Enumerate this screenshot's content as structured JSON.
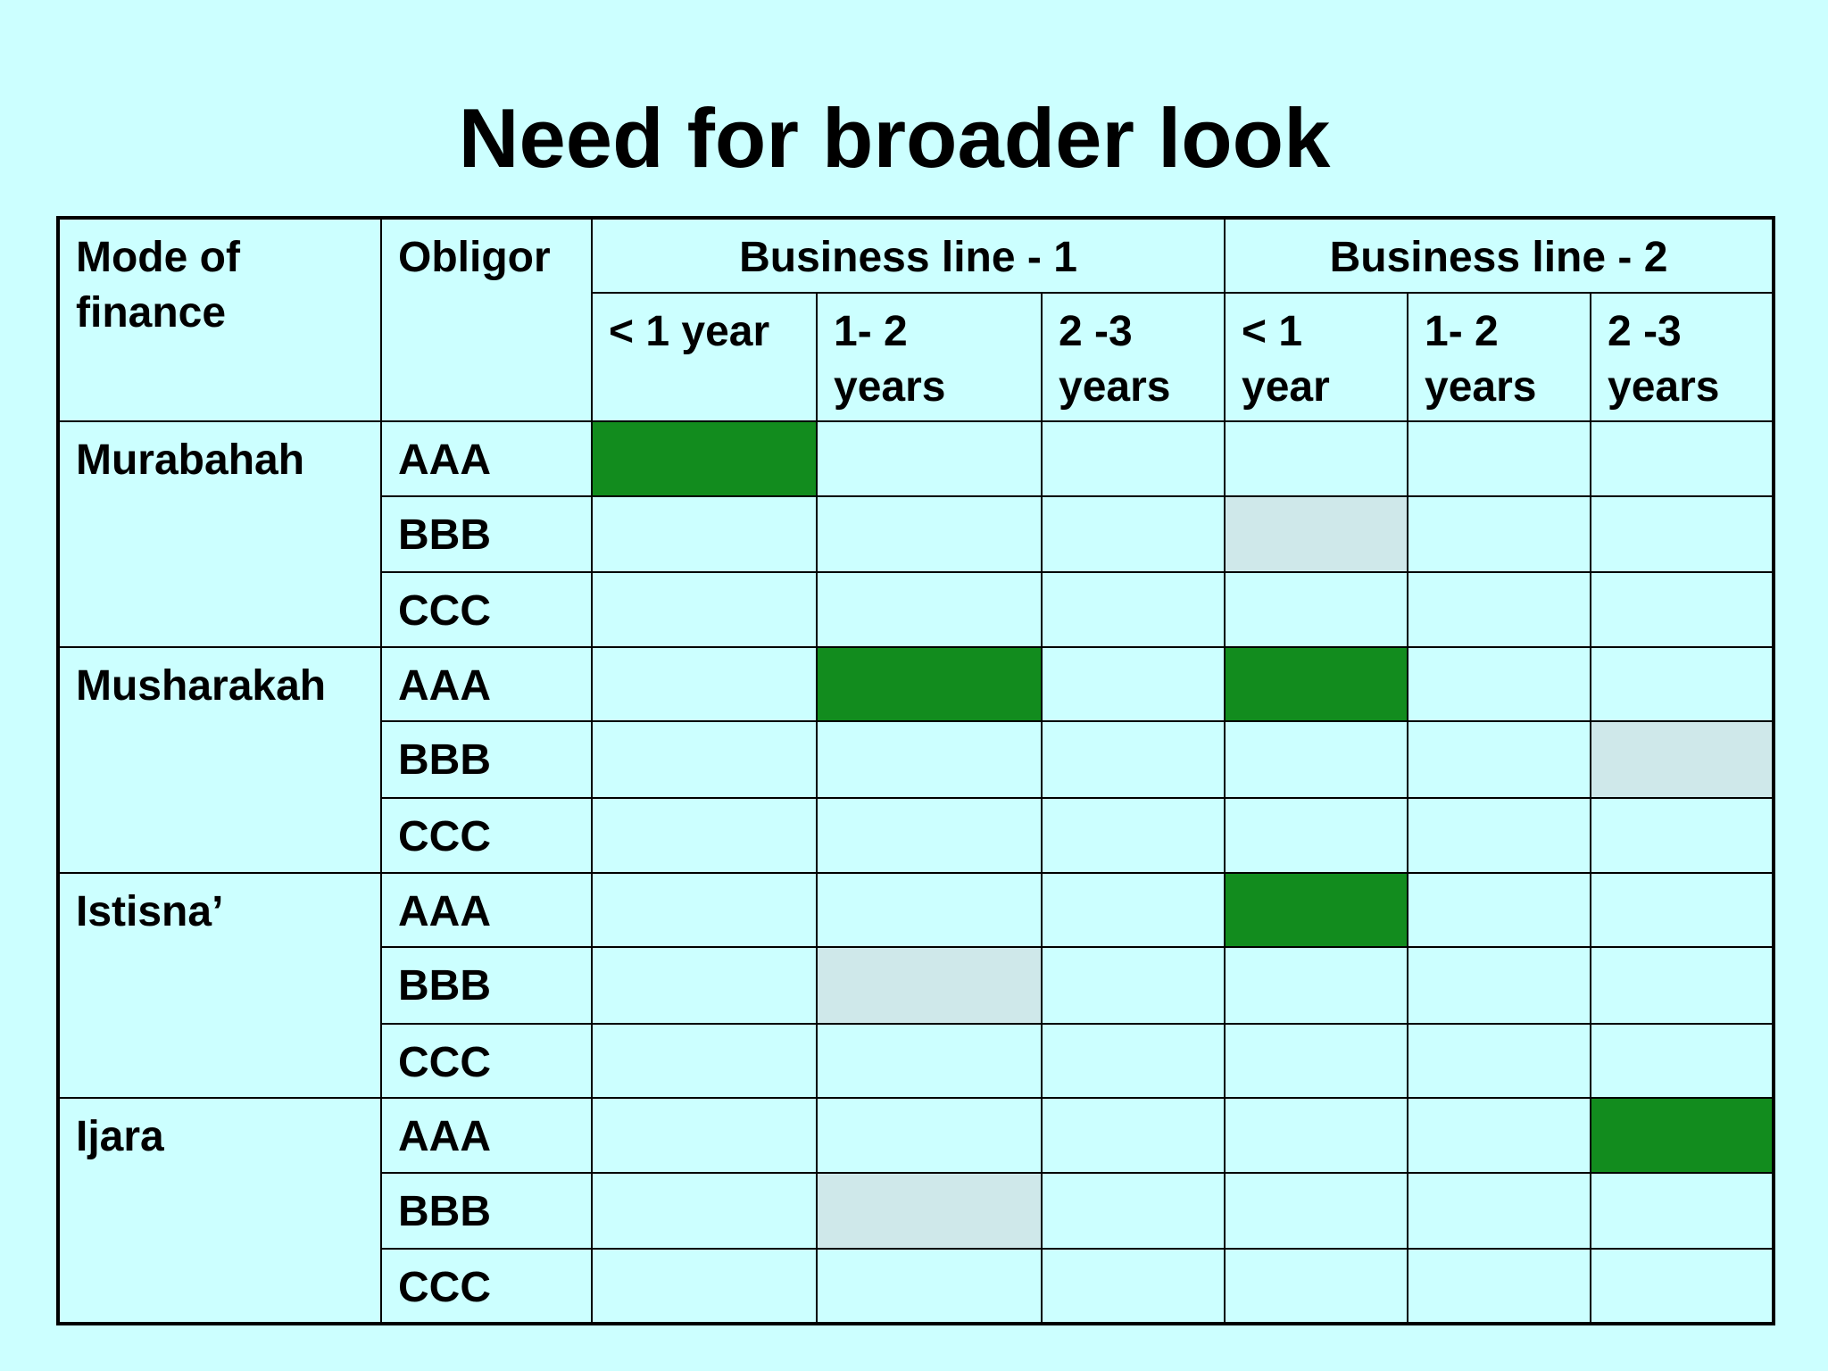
{
  "title": "Need for broader look",
  "header": {
    "mode": "Mode of finance",
    "obligor": "Obligor",
    "groups": [
      "Business line - 1",
      "Business line - 2"
    ],
    "periods": [
      "< 1 year",
      "1- 2 years",
      "2 -3 years",
      "< 1 year",
      "1- 2 years",
      "2 -3 years"
    ]
  },
  "modes": [
    {
      "name": "Murabahah",
      "rows": [
        {
          "obligor": "AAA",
          "cells": [
            "green",
            "",
            "",
            "",
            "",
            ""
          ]
        },
        {
          "obligor": "BBB",
          "cells": [
            "",
            "",
            "",
            "light",
            "",
            ""
          ]
        },
        {
          "obligor": "CCC",
          "cells": [
            "",
            "",
            "",
            "",
            "",
            ""
          ]
        }
      ]
    },
    {
      "name": "Musharakah",
      "rows": [
        {
          "obligor": "AAA",
          "cells": [
            "",
            "green",
            "",
            "green",
            "",
            ""
          ]
        },
        {
          "obligor": "BBB",
          "cells": [
            "",
            "",
            "",
            "",
            "",
            "light"
          ]
        },
        {
          "obligor": "CCC",
          "cells": [
            "",
            "",
            "",
            "",
            "",
            ""
          ]
        }
      ]
    },
    {
      "name": "Istisna’",
      "rows": [
        {
          "obligor": "AAA",
          "cells": [
            "",
            "",
            "",
            "green",
            "",
            ""
          ]
        },
        {
          "obligor": "BBB",
          "cells": [
            "",
            "light",
            "",
            "",
            "",
            ""
          ]
        },
        {
          "obligor": "CCC",
          "cells": [
            "",
            "",
            "",
            "",
            "",
            ""
          ]
        }
      ]
    },
    {
      "name": "Ijara",
      "rows": [
        {
          "obligor": "AAA",
          "cells": [
            "",
            "",
            "",
            "",
            "",
            "green"
          ]
        },
        {
          "obligor": "BBB",
          "cells": [
            "",
            "light",
            "",
            "",
            "",
            ""
          ]
        },
        {
          "obligor": "CCC",
          "cells": [
            "",
            "",
            "",
            "",
            "",
            ""
          ]
        }
      ]
    }
  ],
  "colors": {
    "background": "#ccffff",
    "green": "#128c1e",
    "light": "#cfe8ea",
    "border": "#000000"
  }
}
